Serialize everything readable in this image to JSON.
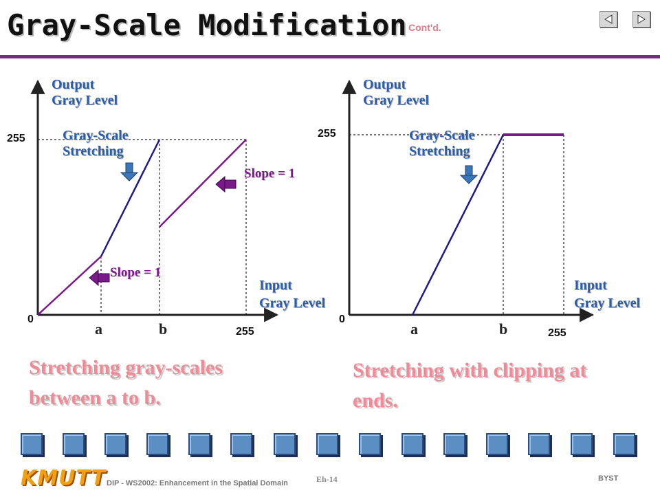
{
  "header": {
    "title": "Gray-Scale Modification",
    "contd": "Cont'd."
  },
  "nav": {
    "prev_icon": "prev-slide-icon",
    "next_icon": "next-slide-icon"
  },
  "left_diagram": {
    "y_axis_label_1": "Output",
    "y_axis_label_2": "Gray Level",
    "x_axis_label_1": "Input",
    "x_axis_label_2": "Gray Level",
    "y_tick_top": "255",
    "origin": "0",
    "x_tick_a": "a",
    "x_tick_b": "b",
    "x_tick_max": "255",
    "annotation_1": "Gray-Scale",
    "annotation_2": "Stretching",
    "slope_upper": "Slope = 1",
    "slope_lower": "Slope = 1",
    "caption_1": "Stretching gray-scales",
    "caption_2": "between a to b."
  },
  "right_diagram": {
    "y_axis_label_1": "Output",
    "y_axis_label_2": "Gray Level",
    "x_axis_label_1": "Input",
    "x_axis_label_2": "Gray Level",
    "y_tick_top": "255",
    "origin": "0",
    "x_tick_a": "a",
    "x_tick_b": "b",
    "x_tick_max": "255",
    "annotation_1": "Gray-Scale",
    "annotation_2": "Stretching",
    "caption_1": "Stretching with clipping at",
    "caption_2": "ends."
  },
  "colors": {
    "accent_purple": "#7a1a8a",
    "line_blue": "#1a1a8a",
    "caption_pink": "#f08a96",
    "label_blue": "#2b5da8"
  },
  "footer": {
    "logo": "KMUTT",
    "course": "DIP - WS2002: Enhancement in the Spatial Domain",
    "page": "Eh-14",
    "author": "BYST"
  }
}
